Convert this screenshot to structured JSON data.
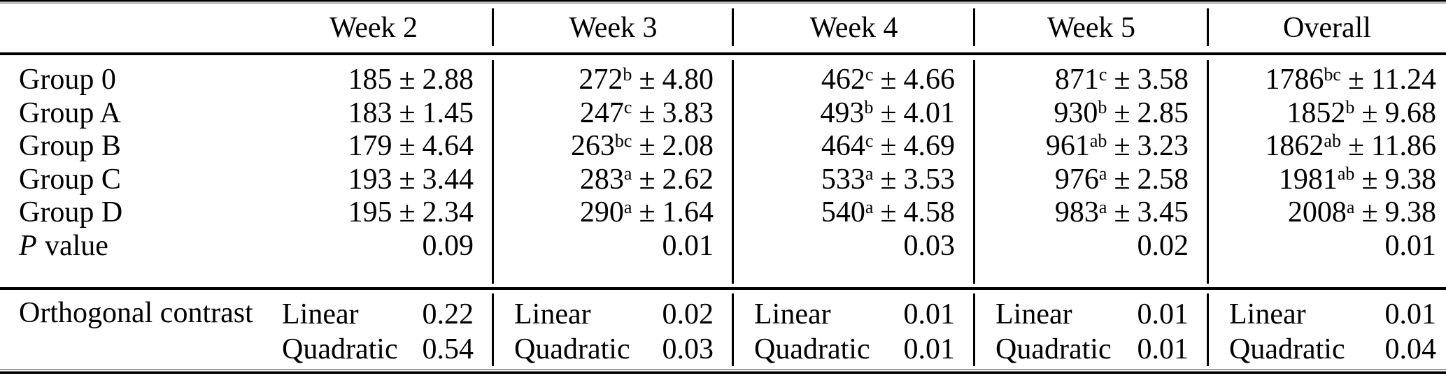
{
  "table": {
    "pm": "±",
    "columns": [
      "Week 2",
      "Week 3",
      "Week 4",
      "Week 5",
      "Overall"
    ],
    "rows": [
      {
        "label": "Group 0",
        "cells": [
          {
            "mean": "185",
            "sup": "",
            "err": "2.88"
          },
          {
            "mean": "272",
            "sup": "b",
            "err": "4.80"
          },
          {
            "mean": "462",
            "sup": "c",
            "err": "4.66"
          },
          {
            "mean": "871",
            "sup": "c",
            "err": "3.58"
          },
          {
            "mean": "1786",
            "sup": "bc",
            "err": "11.24"
          }
        ]
      },
      {
        "label": "Group A",
        "cells": [
          {
            "mean": "183",
            "sup": "",
            "err": "1.45"
          },
          {
            "mean": "247",
            "sup": "c",
            "err": "3.83"
          },
          {
            "mean": "493",
            "sup": "b",
            "err": "4.01"
          },
          {
            "mean": "930",
            "sup": "b",
            "err": "2.85"
          },
          {
            "mean": "1852",
            "sup": "b",
            "err": "9.68"
          }
        ]
      },
      {
        "label": "Group B",
        "cells": [
          {
            "mean": "179",
            "sup": "",
            "err": "4.64"
          },
          {
            "mean": "263",
            "sup": "bc",
            "err": "2.08"
          },
          {
            "mean": "464",
            "sup": "c",
            "err": "4.69"
          },
          {
            "mean": "961",
            "sup": "ab",
            "err": "3.23"
          },
          {
            "mean": "1862",
            "sup": "ab",
            "err": "11.86"
          }
        ]
      },
      {
        "label": "Group C",
        "cells": [
          {
            "mean": "193",
            "sup": "",
            "err": "3.44"
          },
          {
            "mean": "283",
            "sup": "a",
            "err": "2.62"
          },
          {
            "mean": "533",
            "sup": "a",
            "err": "3.53"
          },
          {
            "mean": "976",
            "sup": "a",
            "err": "2.58"
          },
          {
            "mean": "1981",
            "sup": "ab",
            "err": "9.38"
          }
        ]
      },
      {
        "label": "Group D",
        "cells": [
          {
            "mean": "195",
            "sup": "",
            "err": "2.34"
          },
          {
            "mean": "290",
            "sup": "a",
            "err": "1.64"
          },
          {
            "mean": "540",
            "sup": "a",
            "err": "4.58"
          },
          {
            "mean": "983",
            "sup": "a",
            "err": "3.45"
          },
          {
            "mean": "2008",
            "sup": "a",
            "err": "9.38"
          }
        ]
      }
    ],
    "p_row": {
      "p": "P",
      "rest": "value",
      "values": [
        "0.09",
        "0.01",
        "0.03",
        "0.02",
        "0.01"
      ]
    },
    "contrast": {
      "label": "Orthogonal contrast",
      "linear_label": "Linear",
      "quadratic_label": "Quadratic",
      "linear": [
        "0.22",
        "0.02",
        "0.01",
        "0.01",
        "0.01"
      ],
      "quadratic": [
        "0.54",
        "0.03",
        "0.01",
        "0.01",
        "0.04"
      ]
    }
  }
}
